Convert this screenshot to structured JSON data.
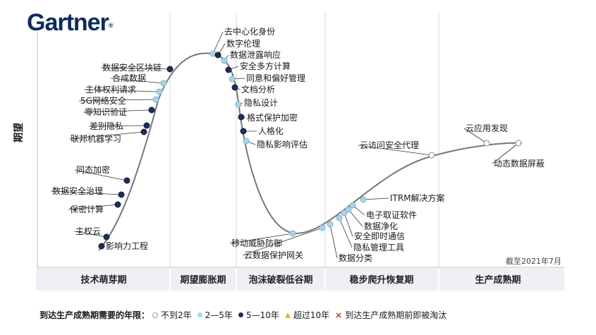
{
  "header": {
    "logo_text": "Gartner"
  },
  "y_axis_label": "期望",
  "as_of": "截至2021年7月",
  "phases": [
    "技术萌芽期",
    "期望膨胀期",
    "泡沫破裂低谷期",
    "稳步爬升恢复期",
    "生产成熟期"
  ],
  "legend": {
    "title": "到达生产成熟期需要的年限：",
    "items": [
      {
        "label": "不到2年",
        "marker": "circle-open"
      },
      {
        "label": "2—5年",
        "marker": "circle-light"
      },
      {
        "label": "5—10年",
        "marker": "circle-dark"
      },
      {
        "label": "超过10年",
        "marker": "triangle"
      },
      {
        "label": "到达生产成熟期前即被淘汰",
        "marker": "cross"
      }
    ]
  },
  "colors": {
    "open": "#ffffff",
    "light": "#a9d4e8",
    "dark": "#1c2f57",
    "triangle": "#e3b52c",
    "cross": "#c0392b",
    "curve": "#777777",
    "phase_bar": "#eef0f4"
  },
  "technologies": [
    {
      "name": "影响力工程",
      "category": "dark"
    },
    {
      "name": "主权云",
      "category": "dark"
    },
    {
      "name": "保密计算",
      "category": "dark"
    },
    {
      "name": "数据安全治理",
      "category": "dark"
    },
    {
      "name": "同态加密",
      "category": "dark"
    },
    {
      "name": "联邦机器学习",
      "category": "dark"
    },
    {
      "name": "差别隐私",
      "category": "dark"
    },
    {
      "name": "零知识验证",
      "category": "dark"
    },
    {
      "name": "5G网络安全",
      "category": "light"
    },
    {
      "name": "主体权利请求",
      "category": "light"
    },
    {
      "name": "合成数据",
      "category": "light"
    },
    {
      "name": "数据安全区块链",
      "category": "dark"
    },
    {
      "name": "去中心化身份",
      "category": "light"
    },
    {
      "name": "数字伦理",
      "category": "dark"
    },
    {
      "name": "数据泄露响应",
      "category": "light"
    },
    {
      "name": "安全多方计算",
      "category": "dark"
    },
    {
      "name": "同意和偏好管理",
      "category": "light"
    },
    {
      "name": "文档分析",
      "category": "dark"
    },
    {
      "name": "隐私设计",
      "category": "light"
    },
    {
      "name": "格式保护加密",
      "category": "dark"
    },
    {
      "name": "人格化",
      "category": "dark"
    },
    {
      "name": "隐私影响评估",
      "category": "light"
    },
    {
      "name": "移动威胁防御",
      "category": "light"
    },
    {
      "name": "云数据保护网关",
      "category": "light"
    },
    {
      "name": "数据分类",
      "category": "light"
    },
    {
      "name": "隐私管理工具",
      "category": "light"
    },
    {
      "name": "安全即时通信",
      "category": "light"
    },
    {
      "name": "数据净化",
      "category": "light"
    },
    {
      "name": "电子取证软件",
      "category": "light"
    },
    {
      "name": "ITRM解决方案",
      "category": "light"
    },
    {
      "name": "云访问安全代理",
      "category": "open"
    },
    {
      "name": "云应用发现",
      "category": "open"
    },
    {
      "name": "动态数据屏蔽",
      "category": "open"
    }
  ]
}
